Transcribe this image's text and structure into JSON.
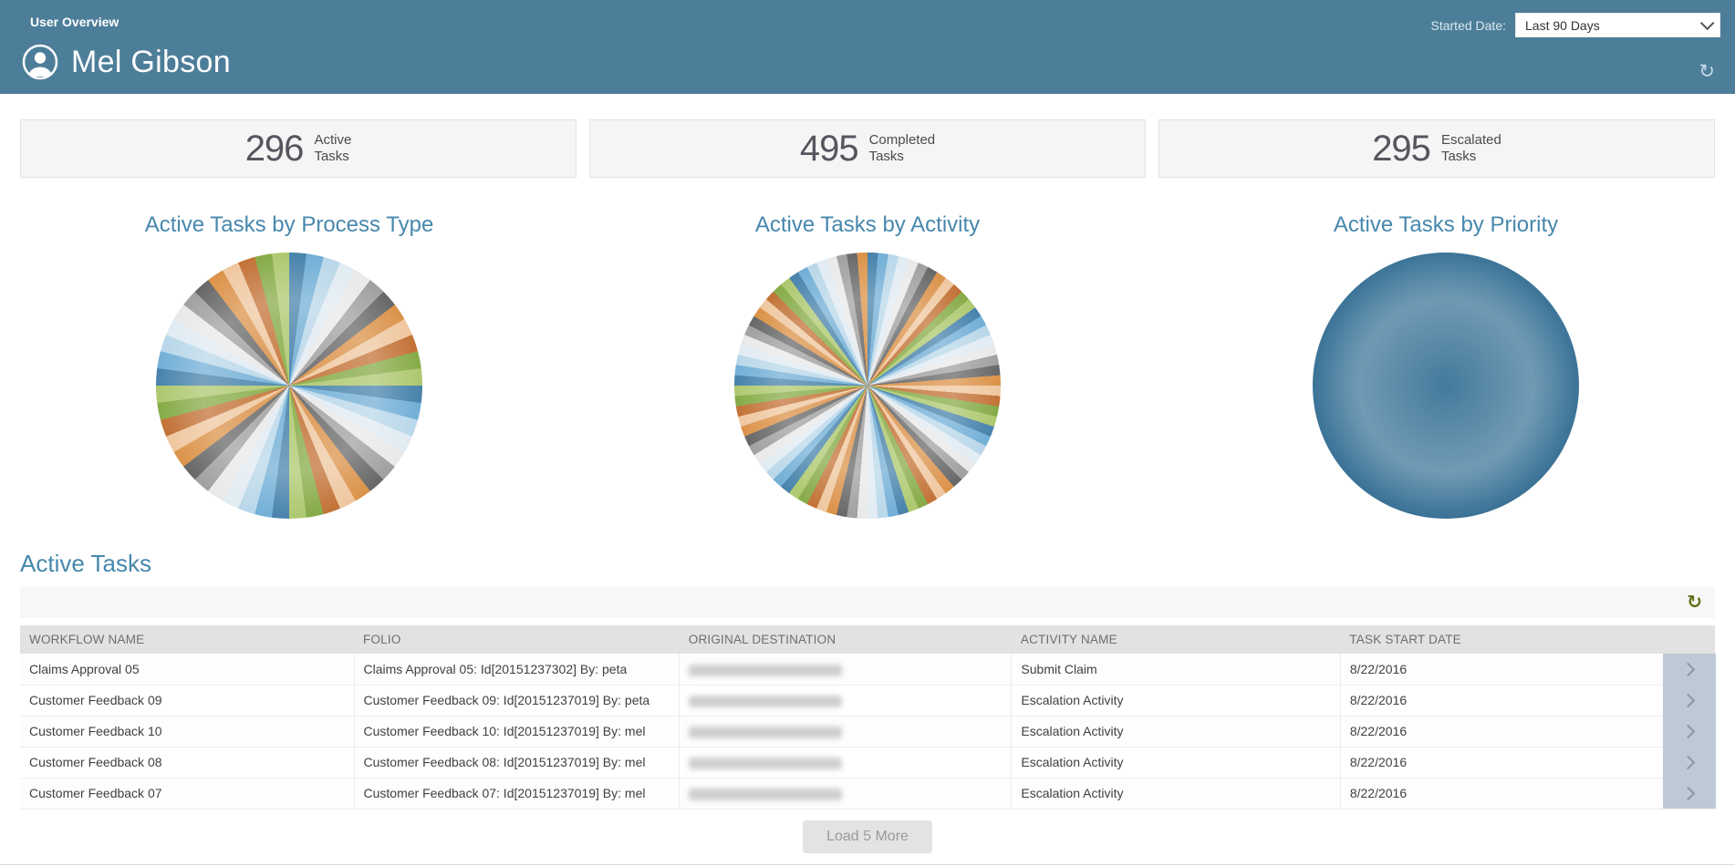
{
  "header": {
    "breadcrumb": "User Overview",
    "user_name": "Mel Gibson",
    "started_date_label": "Started Date:",
    "started_date_value": "Last 90 Days"
  },
  "stats": [
    {
      "value": "296",
      "label_line1": "Active",
      "label_line2": "Tasks"
    },
    {
      "value": "495",
      "label_line1": "Completed",
      "label_line2": "Tasks"
    },
    {
      "value": "295",
      "label_line1": "Escalated",
      "label_line2": "Tasks"
    }
  ],
  "chart_data": [
    {
      "type": "pie",
      "title": "Active Tasks by Process Type",
      "slice_count": 48,
      "equal_slices": true,
      "legend": "none",
      "data_labels": "none",
      "palette": [
        "#3d7ba6",
        "#6aaad4",
        "#b5d5e8",
        "#dfeaf2",
        "#e8e8e8",
        "#9b9b9b",
        "#5f5f5f",
        "#d98c3f",
        "#eec49a",
        "#bf6a2b",
        "#7fa63c",
        "#a8c566"
      ]
    },
    {
      "type": "pie",
      "title": "Active Tasks by Activity",
      "slice_count": 80,
      "equal_slices": true,
      "legend": "none",
      "data_labels": "none",
      "palette": [
        "#3d7ba6",
        "#6aaad4",
        "#b5d5e8",
        "#dfeaf2",
        "#e8e8e8",
        "#9b9b9b",
        "#5f5f5f",
        "#d98c3f",
        "#eec49a",
        "#bf6a2b",
        "#7fa63c",
        "#a8c566"
      ]
    },
    {
      "type": "pie",
      "title": "Active Tasks by Priority",
      "slice_count": 1,
      "values_note": "single full-circle slice",
      "color": "#2f6b90",
      "legend": "none",
      "data_labels": "none"
    }
  ],
  "active_tasks": {
    "title": "Active Tasks",
    "columns": [
      "WORKFLOW NAME",
      "FOLIO",
      "ORIGINAL DESTINATION",
      "ACTIVITY NAME",
      "TASK START DATE"
    ],
    "rows": [
      {
        "workflow_name": "Claims Approval 05",
        "folio": "Claims Approval 05: Id[20151237302] By: peta",
        "original_destination": "",
        "original_destination_redacted": true,
        "activity_name": "Submit Claim",
        "task_start_date": "8/22/2016"
      },
      {
        "workflow_name": "Customer Feedback 09",
        "folio": "Customer Feedback 09: Id[20151237019] By: peta",
        "original_destination": "",
        "original_destination_redacted": true,
        "activity_name": "Escalation Activity",
        "task_start_date": "8/22/2016"
      },
      {
        "workflow_name": "Customer Feedback 10",
        "folio": "Customer Feedback 10: Id[20151237019] By: mel",
        "original_destination": "",
        "original_destination_redacted": true,
        "activity_name": "Escalation Activity",
        "task_start_date": "8/22/2016"
      },
      {
        "workflow_name": "Customer Feedback 08",
        "folio": "Customer Feedback 08: Id[20151237019] By: mel",
        "original_destination": "",
        "original_destination_redacted": true,
        "activity_name": "Escalation Activity",
        "task_start_date": "8/22/2016"
      },
      {
        "workflow_name": "Customer Feedback 07",
        "folio": "Customer Feedback 07: Id[20151237019] By: mel",
        "original_destination": "",
        "original_destination_redacted": true,
        "activity_name": "Escalation Activity",
        "task_start_date": "8/22/2016"
      }
    ],
    "load_more_label": "Load 5 More"
  },
  "colors": {
    "header_bg": "#4d7e99",
    "accent_blue": "#4788ad",
    "card_bg": "#f5f5f5",
    "table_header_bg": "#e2e2e2",
    "toolbar_bg": "#f7f7f7",
    "chevron_strip": "#bdc9d4",
    "toolbar_refresh_green": "#5f7115",
    "priority_pie_blue": "#2f6b90"
  }
}
